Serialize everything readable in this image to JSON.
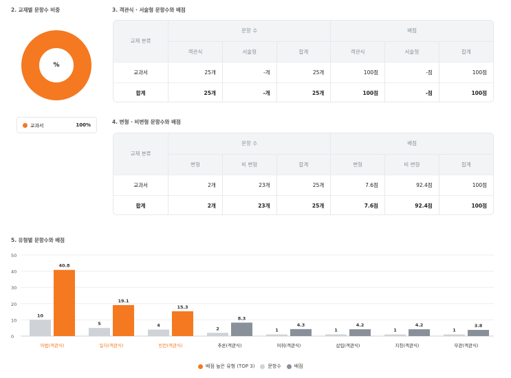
{
  "section2": {
    "title": "2. 교재별 문항수 비중",
    "donut_center": "%",
    "legend": [
      {
        "label": "교과서",
        "value": "100%",
        "color": "#f47920"
      }
    ]
  },
  "section3": {
    "title": "3. 객관식 · 서술형 문항수와 배점",
    "headers": {
      "category": "교재 분류",
      "group1": "문항 수",
      "group2": "배점",
      "sub": [
        "객관식",
        "서술형",
        "합계",
        "객관식",
        "서술형",
        "합계"
      ]
    },
    "rows": [
      {
        "label": "교과서",
        "cells": [
          "25개",
          "-개",
          "25개",
          "100점",
          "-점",
          "100점"
        ]
      },
      {
        "label": "합계",
        "cells": [
          "25개",
          "-개",
          "25개",
          "100점",
          "-점",
          "100점"
        ]
      }
    ]
  },
  "section4": {
    "title": "4. 변형 · 비변형 문항수와 배점",
    "headers": {
      "category": "교재 분류",
      "group1": "문항 수",
      "group2": "배점",
      "sub": [
        "변형",
        "비 변형",
        "합계",
        "변형",
        "비 변형",
        "합계"
      ]
    },
    "rows": [
      {
        "label": "교과서",
        "cells": [
          "2개",
          "23개",
          "25개",
          "7.6점",
          "92.4점",
          "100점"
        ]
      },
      {
        "label": "합계",
        "cells": [
          "2개",
          "23개",
          "25개",
          "7.6점",
          "92.4점",
          "100점"
        ]
      }
    ]
  },
  "section5": {
    "title": "5. 유형별 문항수와 배점",
    "legend": [
      {
        "label": "배점 높은 유형 (TOP 3)",
        "color": "#f47920"
      },
      {
        "label": "문항수",
        "color": "#cfd2d6"
      },
      {
        "label": "배점",
        "color": "#8a9099"
      }
    ]
  },
  "chart_data": {
    "type": "bar",
    "categories": [
      "어법(객관식)",
      "일치(객관식)",
      "빈칸(객관식)",
      "추론(객관식)",
      "어휘(객관식)",
      "삽입(객관식)",
      "지칭(객관식)",
      "무관(객관식)"
    ],
    "series": [
      {
        "name": "문항수",
        "values": [
          10,
          5,
          4,
          2,
          1,
          1,
          1,
          1
        ]
      },
      {
        "name": "배점",
        "values": [
          40.8,
          19.1,
          15.3,
          8.3,
          4.3,
          4.2,
          4.2,
          3.8
        ]
      }
    ],
    "value_labels": {
      "count": [
        "10",
        "5",
        "4",
        "2",
        "1",
        "1",
        "1",
        "1"
      ],
      "score": [
        "40.8",
        "19.1",
        "15.3",
        "8.3",
        "4.3",
        "4.2",
        "4.2",
        "3.8"
      ]
    },
    "top3": [
      0,
      1,
      2
    ],
    "yticks": [
      "0",
      "10",
      "20",
      "30",
      "40",
      "50"
    ],
    "ylim": [
      0,
      50
    ],
    "grid": true,
    "colors": {
      "top": "#f47920",
      "count": "#cfd2d6",
      "score": "#8a9099",
      "top_label": "#f47920"
    }
  }
}
